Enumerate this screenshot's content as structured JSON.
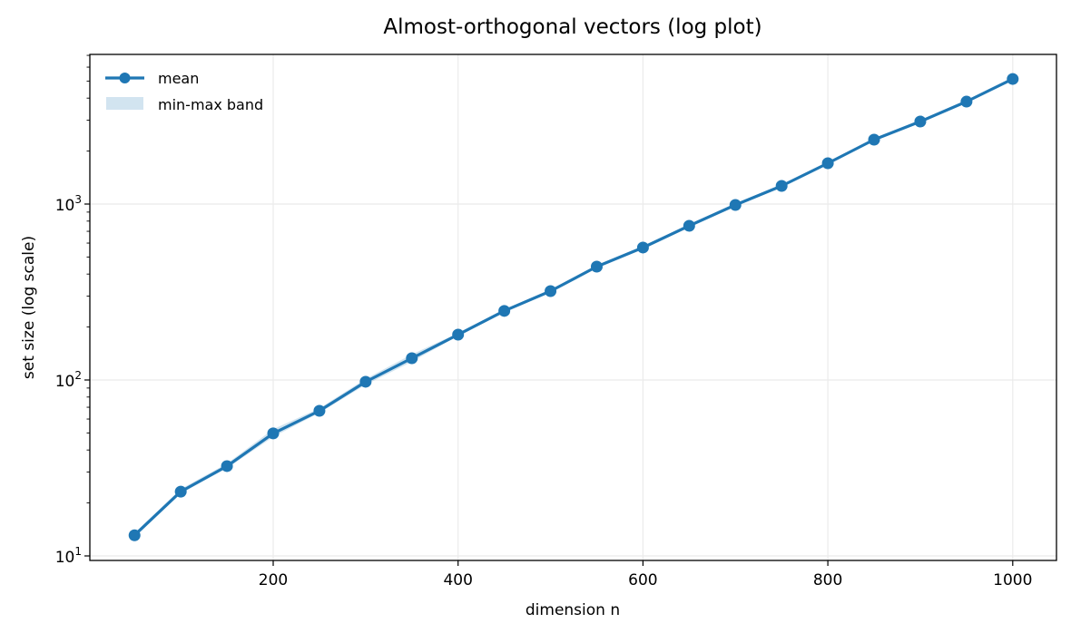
{
  "chart_data": {
    "type": "line",
    "title": "Almost-orthogonal vectors (log plot)",
    "xlabel": "dimension n",
    "ylabel": "set size (log scale)",
    "yscale": "log",
    "xlim": [
      2.5,
      1047.5
    ],
    "ylim": [
      9.4,
      7200
    ],
    "grid": true,
    "legend_position": "upper left",
    "x_ticks": [
      200,
      400,
      600,
      800,
      1000
    ],
    "x_tick_labels": [
      "200",
      "400",
      "600",
      "800",
      "1000"
    ],
    "y_ticks": [
      10,
      100,
      1000
    ],
    "y_tick_labels": [
      {
        "base": "10",
        "exp": "1"
      },
      {
        "base": "10",
        "exp": "2"
      },
      {
        "base": "10",
        "exp": "3"
      }
    ],
    "x": [
      50,
      100,
      150,
      200,
      250,
      300,
      350,
      400,
      450,
      500,
      550,
      600,
      650,
      700,
      750,
      800,
      850,
      900,
      950,
      1000
    ],
    "series": [
      {
        "name": "mean",
        "color": "#1f77b4",
        "marker": "circle",
        "values": [
          13.1,
          23.2,
          32.4,
          49.7,
          66.8,
          97.7,
          133,
          181,
          247,
          320,
          441,
          566,
          752,
          988,
          1268,
          1706,
          2323,
          2944,
          3822,
          5140
        ]
      },
      {
        "name": "min-max band",
        "color": "#1f77b4",
        "opacity": 0.2,
        "min": [
          12.8,
          22.6,
          31.5,
          47.5,
          65.0,
          94.0,
          127,
          178,
          242,
          315,
          435,
          558,
          735,
          975,
          1250,
          1685,
          2295,
          2910,
          3780,
          5090
        ],
        "max": [
          13.5,
          24.0,
          33.5,
          52.5,
          69.0,
          101.5,
          140,
          185,
          252,
          326,
          448,
          574,
          770,
          1000,
          1285,
          1728,
          2350,
          2980,
          3865,
          5190
        ]
      }
    ],
    "legend": [
      {
        "label": "mean",
        "kind": "line-marker"
      },
      {
        "label": "min-max band",
        "kind": "patch"
      }
    ]
  }
}
